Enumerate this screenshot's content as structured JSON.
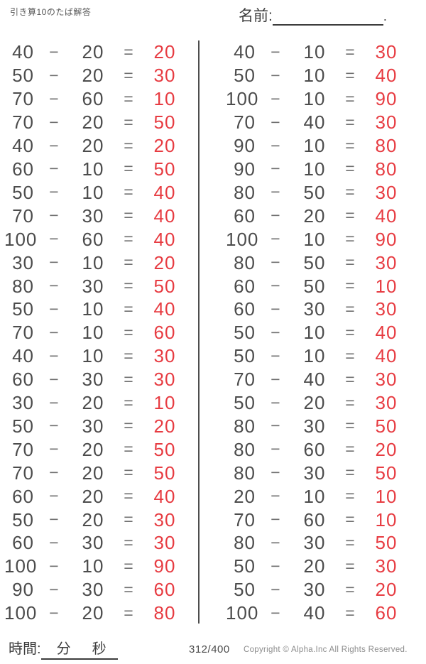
{
  "header": {
    "title": "引き算10のたば解答",
    "name_label": "名前:",
    "name_line_end": "."
  },
  "symbols": {
    "minus": "−",
    "equals": "="
  },
  "colors": {
    "ink": "#4c4c4c",
    "answer_red": "#e73c42",
    "copyright_gray": "#8c8c8c"
  },
  "problems": {
    "left": [
      {
        "a": "40",
        "b": "20",
        "ans": "20"
      },
      {
        "a": "50",
        "b": "20",
        "ans": "30"
      },
      {
        "a": "70",
        "b": "60",
        "ans": "10"
      },
      {
        "a": "70",
        "b": "20",
        "ans": "50"
      },
      {
        "a": "40",
        "b": "20",
        "ans": "20"
      },
      {
        "a": "60",
        "b": "10",
        "ans": "50"
      },
      {
        "a": "50",
        "b": "10",
        "ans": "40"
      },
      {
        "a": "70",
        "b": "30",
        "ans": "40"
      },
      {
        "a": "100",
        "b": "60",
        "ans": "40"
      },
      {
        "a": "30",
        "b": "10",
        "ans": "20"
      },
      {
        "a": "80",
        "b": "30",
        "ans": "50"
      },
      {
        "a": "50",
        "b": "10",
        "ans": "40"
      },
      {
        "a": "70",
        "b": "10",
        "ans": "60"
      },
      {
        "a": "40",
        "b": "10",
        "ans": "30"
      },
      {
        "a": "60",
        "b": "30",
        "ans": "30"
      },
      {
        "a": "30",
        "b": "20",
        "ans": "10"
      },
      {
        "a": "50",
        "b": "30",
        "ans": "20"
      },
      {
        "a": "70",
        "b": "20",
        "ans": "50"
      },
      {
        "a": "70",
        "b": "20",
        "ans": "50"
      },
      {
        "a": "60",
        "b": "20",
        "ans": "40"
      },
      {
        "a": "50",
        "b": "20",
        "ans": "30"
      },
      {
        "a": "60",
        "b": "30",
        "ans": "30"
      },
      {
        "a": "100",
        "b": "10",
        "ans": "90"
      },
      {
        "a": "90",
        "b": "30",
        "ans": "60"
      },
      {
        "a": "100",
        "b": "20",
        "ans": "80"
      }
    ],
    "right": [
      {
        "a": "40",
        "b": "10",
        "ans": "30"
      },
      {
        "a": "50",
        "b": "10",
        "ans": "40"
      },
      {
        "a": "100",
        "b": "10",
        "ans": "90"
      },
      {
        "a": "70",
        "b": "40",
        "ans": "30"
      },
      {
        "a": "90",
        "b": "10",
        "ans": "80"
      },
      {
        "a": "90",
        "b": "10",
        "ans": "80"
      },
      {
        "a": "80",
        "b": "50",
        "ans": "30"
      },
      {
        "a": "60",
        "b": "20",
        "ans": "40"
      },
      {
        "a": "100",
        "b": "10",
        "ans": "90"
      },
      {
        "a": "80",
        "b": "50",
        "ans": "30"
      },
      {
        "a": "60",
        "b": "50",
        "ans": "10"
      },
      {
        "a": "60",
        "b": "30",
        "ans": "30"
      },
      {
        "a": "50",
        "b": "10",
        "ans": "40"
      },
      {
        "a": "50",
        "b": "10",
        "ans": "40"
      },
      {
        "a": "70",
        "b": "40",
        "ans": "30"
      },
      {
        "a": "50",
        "b": "20",
        "ans": "30"
      },
      {
        "a": "80",
        "b": "30",
        "ans": "50"
      },
      {
        "a": "80",
        "b": "60",
        "ans": "20"
      },
      {
        "a": "80",
        "b": "30",
        "ans": "50"
      },
      {
        "a": "20",
        "b": "10",
        "ans": "10"
      },
      {
        "a": "70",
        "b": "60",
        "ans": "10"
      },
      {
        "a": "80",
        "b": "30",
        "ans": "50"
      },
      {
        "a": "50",
        "b": "20",
        "ans": "30"
      },
      {
        "a": "50",
        "b": "30",
        "ans": "20"
      },
      {
        "a": "100",
        "b": "40",
        "ans": "60"
      }
    ]
  },
  "footer": {
    "time_label": "時間:",
    "minutes_label": "分",
    "seconds_label": "秒",
    "page_number": "312/400",
    "copyright": "Copyright ©  Alpha.Inc All Rights Reserved."
  }
}
